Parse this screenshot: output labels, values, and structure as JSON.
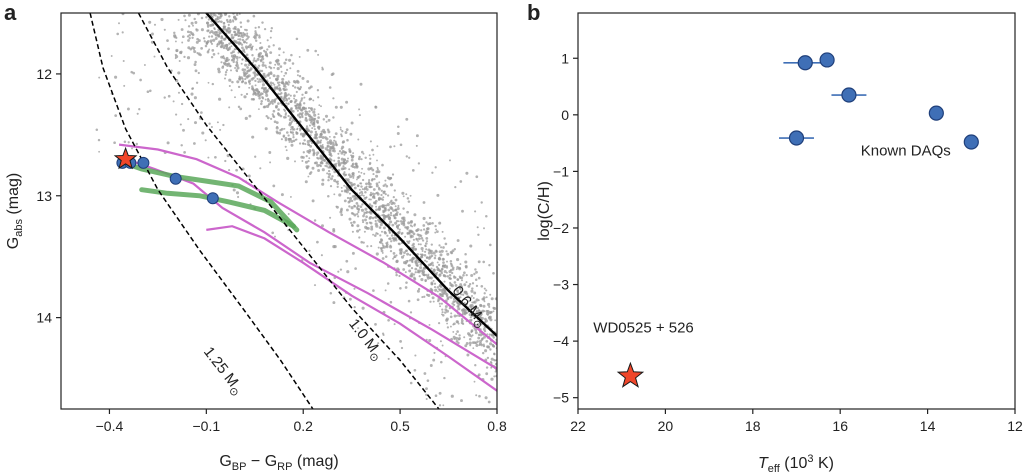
{
  "chart_data": [
    {
      "panel": "a",
      "type": "scatter",
      "xlabel": {
        "main": "G",
        "sub1": "BP",
        "mid": " − G",
        "sub2": "RP",
        "unit": " (mag)"
      },
      "ylabel": {
        "main": "G",
        "sub": "abs",
        "unit": " (mag)"
      },
      "xlim": [
        -0.55,
        0.8
      ],
      "ylim": [
        14.75,
        11.5
      ],
      "y_inverted": true,
      "xticks": [
        {
          "value": -0.4,
          "label": "−0.4"
        },
        {
          "value": -0.1,
          "label": "−0.1"
        },
        {
          "value": 0.2,
          "label": "0.2"
        },
        {
          "value": 0.5,
          "label": "0.5"
        },
        {
          "value": 0.8,
          "label": "0.8"
        }
      ],
      "yticks": [
        {
          "value": 12,
          "label": "12"
        },
        {
          "value": 13,
          "label": "13"
        },
        {
          "value": 14,
          "label": "14"
        }
      ],
      "background_stars": {
        "color": "#9a9a9a",
        "main_band": [
          [
            -0.1,
            11.5
          ],
          [
            0.2,
            12.4
          ],
          [
            0.5,
            13.3
          ],
          [
            0.8,
            14.2
          ]
        ],
        "upper_scatter_edge": [
          [
            0.08,
            11.5
          ],
          [
            0.8,
            12.9
          ]
        ]
      },
      "cooling_tracks": [
        {
          "label": "0.6 M⊙",
          "style": "solid",
          "color": "#000000",
          "points": [
            [
              -0.1,
              11.5
            ],
            [
              0.05,
              11.95
            ],
            [
              0.2,
              12.45
            ],
            [
              0.35,
              12.95
            ],
            [
              0.5,
              13.35
            ],
            [
              0.65,
              13.78
            ],
            [
              0.8,
              14.15
            ]
          ]
        },
        {
          "label": "1.0 M⊙",
          "style": "dashed",
          "color": "#000000",
          "points": [
            [
              -0.31,
              11.5
            ],
            [
              -0.22,
              11.95
            ],
            [
              -0.1,
              12.42
            ],
            [
              0.05,
              12.92
            ],
            [
              0.2,
              13.42
            ],
            [
              0.35,
              13.92
            ],
            [
              0.5,
              14.35
            ],
            [
              0.62,
              14.75
            ]
          ]
        },
        {
          "label": "1.25 M⊙",
          "style": "dashed",
          "color": "#000000",
          "points": [
            [
              -0.46,
              11.5
            ],
            [
              -0.42,
              11.95
            ],
            [
              -0.35,
              12.45
            ],
            [
              -0.25,
              12.95
            ],
            [
              -0.12,
              13.45
            ],
            [
              0.02,
              13.95
            ],
            [
              0.13,
              14.35
            ],
            [
              0.23,
              14.75
            ]
          ]
        }
      ],
      "magenta_tracks": {
        "color": "#cc66cc",
        "lines": [
          [
            [
              -0.37,
              12.58
            ],
            [
              -0.25,
              12.62
            ],
            [
              -0.13,
              12.7
            ],
            [
              0.0,
              12.85
            ],
            [
              0.12,
              13.05
            ],
            [
              0.28,
              13.3
            ],
            [
              0.45,
              13.55
            ],
            [
              0.62,
              13.83
            ],
            [
              0.8,
              14.22
            ]
          ],
          [
            [
              -0.37,
              12.68
            ],
            [
              -0.26,
              12.78
            ],
            [
              -0.14,
              12.9
            ],
            [
              -0.05,
              13.1
            ],
            [
              0.08,
              13.3
            ],
            [
              0.22,
              13.55
            ],
            [
              0.4,
              13.8
            ],
            [
              0.6,
              14.1
            ],
            [
              0.8,
              14.42
            ]
          ],
          [
            [
              -0.1,
              13.28
            ],
            [
              -0.02,
              13.25
            ],
            [
              0.08,
              13.35
            ],
            [
              0.2,
              13.55
            ],
            [
              0.35,
              13.82
            ],
            [
              0.5,
              14.05
            ],
            [
              0.65,
              14.32
            ],
            [
              0.8,
              14.6
            ]
          ]
        ]
      },
      "green_tracks": {
        "color": "#5aa85a",
        "lines": [
          [
            [
              -0.365,
              12.72
            ],
            [
              -0.3,
              12.78
            ],
            [
              -0.2,
              12.84
            ],
            [
              -0.1,
              12.88
            ],
            [
              0.0,
              12.92
            ],
            [
              0.1,
              13.05
            ],
            [
              0.18,
              13.28
            ]
          ],
          [
            [
              -0.3,
              12.95
            ],
            [
              -0.22,
              12.98
            ],
            [
              -0.12,
              13.0
            ],
            [
              -0.03,
              13.05
            ],
            [
              0.08,
              13.12
            ],
            [
              0.17,
              13.25
            ]
          ]
        ]
      },
      "daq_points": {
        "color": "#3f6fb6",
        "points": [
          [
            -0.36,
            12.73
          ],
          [
            -0.335,
            12.73
          ],
          [
            -0.295,
            12.73
          ],
          [
            -0.195,
            12.86
          ],
          [
            -0.08,
            13.02
          ]
        ]
      },
      "target_star": {
        "x": -0.35,
        "y": 12.7,
        "color": "#f0462a"
      },
      "annotations": [
        {
          "text": "0.6 M",
          "sub": "⊙",
          "x": 0.66,
          "y": 13.78,
          "rotation": 52
        },
        {
          "text": "1.0 M",
          "sub": "⊙",
          "x": 0.34,
          "y": 14.05,
          "rotation": 52
        },
        {
          "text": "1.25 M",
          "sub": "⊙",
          "x": -0.11,
          "y": 14.28,
          "rotation": 52
        }
      ]
    },
    {
      "panel": "b",
      "type": "scatter",
      "xlabel": {
        "main": "T",
        "sub": "eff",
        "unit": " (10",
        "sup": "3",
        "tail": " K)"
      },
      "ylabel": {
        "text": "log(C/H)"
      },
      "xlim": [
        22,
        12
      ],
      "ylim": [
        -5.2,
        1.8
      ],
      "x_inverted": true,
      "xticks": [
        {
          "value": 22,
          "label": "22"
        },
        {
          "value": 20,
          "label": "20"
        },
        {
          "value": 18,
          "label": "18"
        },
        {
          "value": 16,
          "label": "16"
        },
        {
          "value": 14,
          "label": "14"
        },
        {
          "value": 12,
          "label": "12"
        }
      ],
      "yticks": [
        {
          "value": 1,
          "label": "1"
        },
        {
          "value": 0,
          "label": "0"
        },
        {
          "value": -1,
          "label": "−1"
        },
        {
          "value": -2,
          "label": "−2"
        },
        {
          "value": -3,
          "label": "−3"
        },
        {
          "value": -4,
          "label": "−4"
        },
        {
          "value": -5,
          "label": "−5"
        }
      ],
      "series": [
        {
          "name": "Known DAQs",
          "marker": "circle",
          "color": "#3f6fb6",
          "points": [
            {
              "x": 16.8,
              "y": 0.92,
              "xerr": 0.5
            },
            {
              "x": 16.3,
              "y": 0.97,
              "xerr": 0.0
            },
            {
              "x": 15.8,
              "y": 0.35,
              "xerr": 0.4
            },
            {
              "x": 13.8,
              "y": 0.03,
              "xerr": 0.0
            },
            {
              "x": 17.0,
              "y": -0.41,
              "xerr": 0.4
            },
            {
              "x": 13.0,
              "y": -0.48,
              "xerr": 0.0
            }
          ]
        },
        {
          "name": "WD0525 + 526",
          "marker": "star",
          "color": "#f0462a",
          "points": [
            {
              "x": 20.8,
              "y": -4.62,
              "xerr": 0.0
            }
          ]
        }
      ],
      "annotations": [
        {
          "text": "Known DAQs",
          "x": 14.5,
          "y": -0.72
        },
        {
          "text": "WD0525 + 526",
          "x": 20.5,
          "y": -3.85
        }
      ]
    }
  ]
}
